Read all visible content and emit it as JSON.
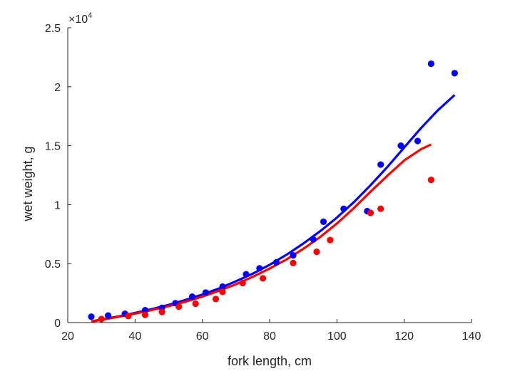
{
  "chart_data": {
    "type": "scatter",
    "title": "",
    "xlabel": "fork length, cm",
    "ylabel": "wet weight, g",
    "xlim": [
      20,
      140
    ],
    "ylim": [
      0,
      25000
    ],
    "xticks": [
      20,
      40,
      60,
      80,
      100,
      120,
      140
    ],
    "xtick_labels": [
      "20",
      "40",
      "60",
      "80",
      "100",
      "120",
      "140"
    ],
    "yticks": [
      0,
      5000,
      10000,
      15000,
      20000,
      25000
    ],
    "ytick_labels": [
      "0",
      "0.5",
      "1",
      "1.5",
      "2",
      "2.5"
    ],
    "y_exponent": {
      "base": "10",
      "power": "4",
      "prefix": "×"
    },
    "grid": false,
    "legend": "none",
    "series": [
      {
        "color": "#0000ff",
        "kind": "points",
        "x": [
          27,
          32,
          37,
          43,
          48,
          52,
          57,
          61,
          66,
          73,
          77,
          82,
          87,
          93,
          96,
          102,
          109,
          113,
          119,
          124,
          128,
          135
        ],
        "y": [
          500,
          600,
          750,
          1050,
          1250,
          1650,
          2200,
          2550,
          3050,
          4100,
          4600,
          5100,
          5700,
          7050,
          8550,
          9650,
          9450,
          13400,
          15000,
          15400,
          21950,
          21150
        ]
      },
      {
        "color": "#ff0000",
        "kind": "points",
        "x": [
          30,
          38,
          43,
          48,
          53,
          58,
          64,
          66,
          72,
          78,
          87,
          94,
          98,
          110,
          113,
          128
        ],
        "y": [
          300,
          550,
          650,
          900,
          1350,
          1600,
          2000,
          2600,
          3350,
          3750,
          5050,
          6000,
          7000,
          9300,
          9650,
          12100
        ]
      },
      {
        "color": "#0000ff",
        "kind": "fit",
        "x": [
          27,
          30,
          35,
          40,
          45,
          50,
          55,
          60,
          65,
          70,
          75,
          80,
          85,
          90,
          95,
          100,
          105,
          110,
          115,
          120,
          125,
          130,
          135
        ],
        "y": [
          100,
          260,
          520,
          820,
          1150,
          1500,
          1920,
          2380,
          2900,
          3500,
          4150,
          4900,
          5750,
          6700,
          7750,
          8900,
          10200,
          11650,
          13200,
          14850,
          16500,
          18000,
          19300
        ]
      },
      {
        "color": "#ff0000",
        "kind": "fit",
        "x": [
          27,
          30,
          35,
          40,
          45,
          50,
          55,
          60,
          65,
          70,
          75,
          80,
          85,
          90,
          95,
          100,
          105,
          110,
          115,
          120,
          125,
          128
        ],
        "y": [
          90,
          240,
          480,
          760,
          1060,
          1390,
          1770,
          2200,
          2700,
          3250,
          3880,
          4580,
          5350,
          6250,
          7250,
          8400,
          9700,
          11100,
          12450,
          13750,
          14700,
          15100
        ]
      }
    ]
  }
}
